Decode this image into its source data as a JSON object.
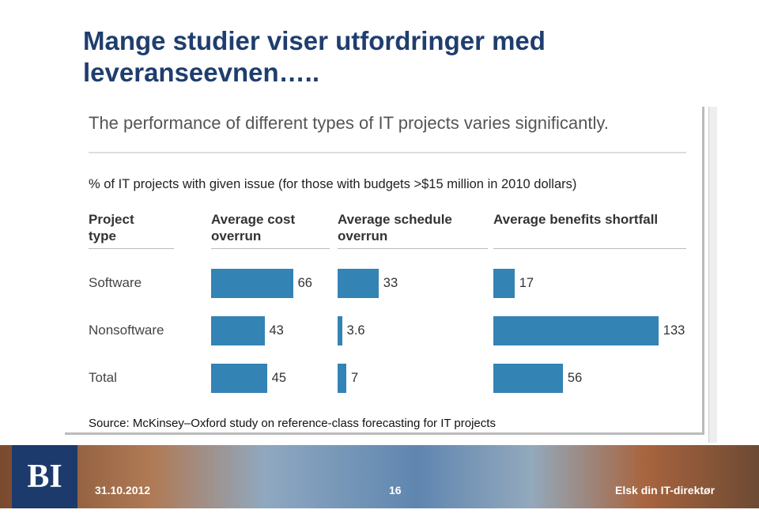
{
  "slide": {
    "title": "Mange studier viser utfordringer med leveranseevnen…..",
    "logo": "BI",
    "date": "31.10.2012",
    "page": "16",
    "tagline": "Elsk din IT-direktør"
  },
  "chart_data": {
    "type": "bar",
    "title": "The performance of different types of IT projects varies significantly.",
    "subtitle": "% of IT projects with given issue (for those with budgets >$15 million in 2010 dollars)",
    "category_header": "Project type",
    "categories": [
      "Software",
      "Nonsoftware",
      "Total"
    ],
    "series": [
      {
        "name": "Average cost overrun",
        "color": "#3483b5",
        "values": [
          66,
          43,
          45
        ]
      },
      {
        "name": "Average schedule overrun",
        "color": "#3483b5",
        "values": [
          33,
          3.6,
          7
        ]
      },
      {
        "name": "Average benefits shortfall",
        "color": "#3483b5",
        "values": [
          17,
          133,
          56
        ]
      }
    ],
    "source": "Source: McKinsey–Oxford study on reference-class forecasting for IT projects"
  }
}
